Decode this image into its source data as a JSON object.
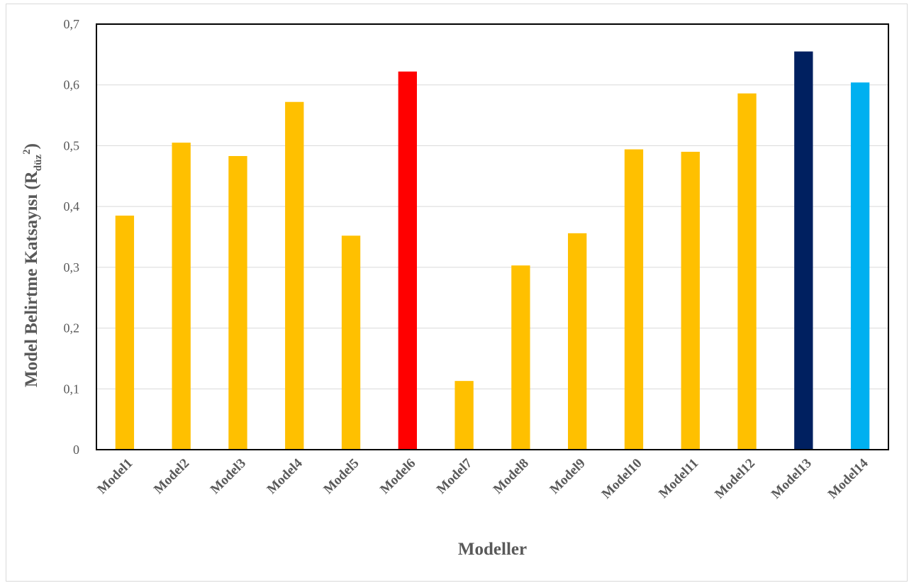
{
  "chart_data": {
    "type": "bar",
    "categories": [
      "Model1",
      "Model2",
      "Model3",
      "Model4",
      "Model5",
      "Model6",
      "Model7",
      "Model8",
      "Model9",
      "Model10",
      "Model11",
      "Model12",
      "Model13",
      "Model14"
    ],
    "values": [
      0.385,
      0.505,
      0.483,
      0.572,
      0.352,
      0.622,
      0.113,
      0.303,
      0.356,
      0.494,
      0.49,
      0.586,
      0.655,
      0.604
    ],
    "bar_colors": [
      "#ffc000",
      "#ffc000",
      "#ffc000",
      "#ffc000",
      "#ffc000",
      "#ff0000",
      "#ffc000",
      "#ffc000",
      "#ffc000",
      "#ffc000",
      "#ffc000",
      "#ffc000",
      "#002060",
      "#00b0f0"
    ],
    "title": "",
    "xlabel": "Modeller",
    "ylabel_main": "Model Belirtme Katsayısı (R",
    "ylabel_sub": "düz",
    "ylabel_sup": "2",
    "ylabel_close": ")",
    "ylim": [
      0,
      0.7
    ],
    "yticks": [
      0,
      0.1,
      0.2,
      0.3,
      0.4,
      0.5,
      0.6,
      0.7
    ],
    "ytick_labels": [
      "0",
      "0,1",
      "0,2",
      "0,3",
      "0,4",
      "0,5",
      "0,6",
      "0,7"
    ],
    "grid": true,
    "legend": "none"
  }
}
